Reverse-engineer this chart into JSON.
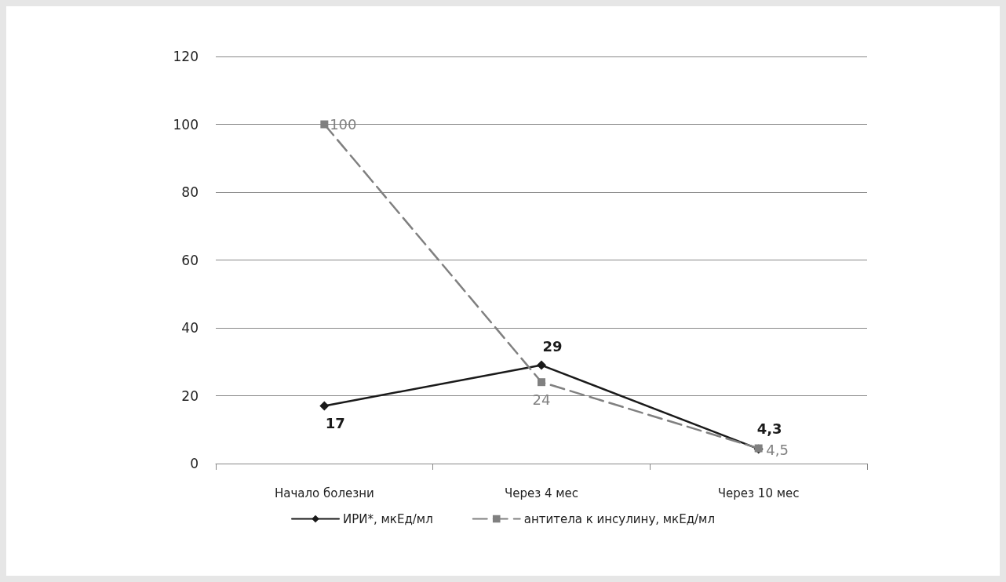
{
  "chart_data": {
    "type": "line",
    "categories": [
      "Начало болезни",
      "Через 4 мес",
      "Через 10 мес"
    ],
    "series": [
      {
        "name": "ИРИ*, мкЕд/мл",
        "color": "#1a1a1a",
        "values": [
          17,
          29,
          4.3
        ],
        "value_labels": [
          "17",
          "29",
          "4,3"
        ],
        "marker": "diamond",
        "line_style": "solid"
      },
      {
        "name": "антитела к инсулину, мкЕд/мл",
        "color": "#808080",
        "values": [
          100,
          24,
          4.5
        ],
        "value_labels": [
          "100",
          "24",
          "4,5"
        ],
        "marker": "square",
        "line_style": "dashed"
      }
    ],
    "ylim": [
      0,
      120
    ],
    "yticks": [
      0,
      20,
      40,
      60,
      80,
      100,
      120
    ],
    "grid": "y",
    "legend": "bottom"
  }
}
